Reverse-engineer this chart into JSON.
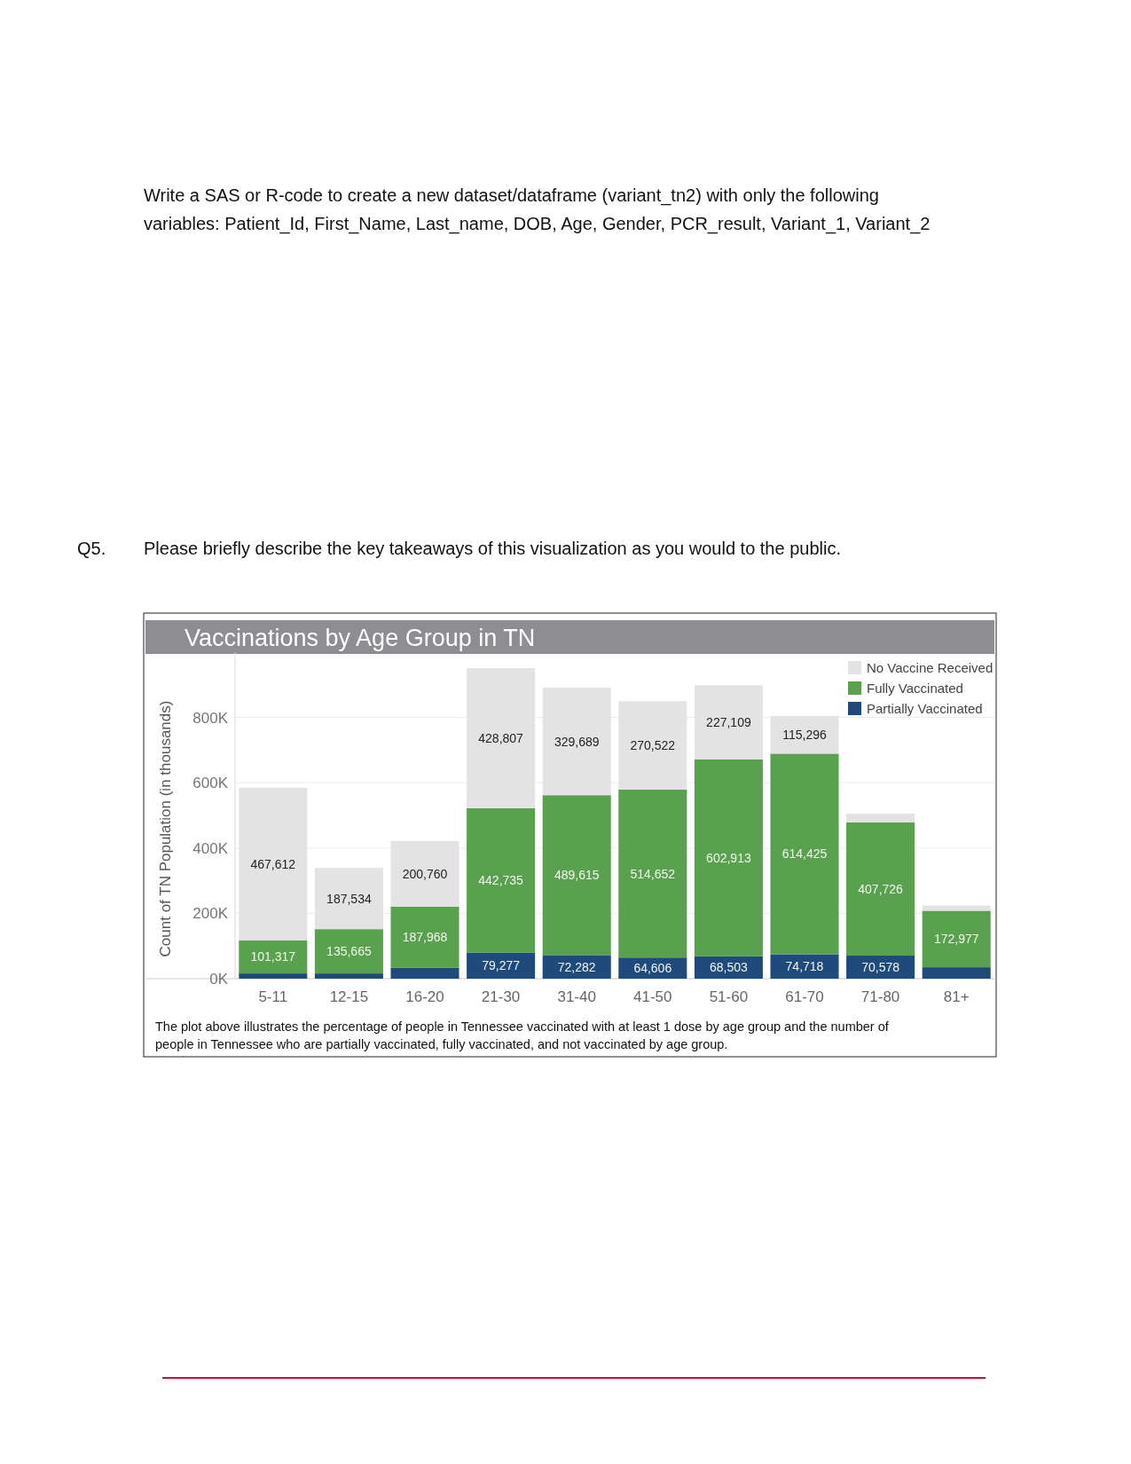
{
  "chart_data": {
    "type": "bar",
    "title": "Vaccinations by Age Group in TN",
    "ylabel": "Count of TN Population (in thousands)",
    "categories": [
      "5-11",
      "12-15",
      "16-20",
      "21-30",
      "31-40",
      "41-50",
      "51-60",
      "61-70",
      "71-80",
      "81+"
    ],
    "stacked": true,
    "series": [
      {
        "name": "Partially Vaccinated",
        "color": "#1f4a7c",
        "values": [
          16000,
          16000,
          33000,
          79277,
          72282,
          64606,
          68503,
          74718,
          70578,
          35000
        ],
        "value_labels": [
          null,
          null,
          null,
          "79,277",
          "72,282",
          "64,606",
          "68,503",
          "74,718",
          "70,578",
          null
        ]
      },
      {
        "name": "Fully Vaccinated",
        "color": "#59a14f",
        "values": [
          101317,
          135665,
          187968,
          442735,
          489615,
          514652,
          602913,
          614425,
          407726,
          172977
        ],
        "value_labels": [
          "101,317",
          "135,665",
          "187,968",
          "442,735",
          "489,615",
          "514,652",
          "602,913",
          "614,425",
          "407,726",
          "172,977"
        ]
      },
      {
        "name": "No Vaccine Received",
        "color": "#e3e3e3",
        "values": [
          467612,
          187534,
          200760,
          428807,
          329689,
          270522,
          227109,
          115296,
          27000,
          16000
        ],
        "value_labels": [
          "467,612",
          "187,534",
          "200,760",
          "428,807",
          "329,689",
          "270,522",
          "227,109",
          "115,296",
          null,
          null
        ]
      }
    ],
    "ylim": [
      0,
      1000000
    ],
    "yticks": [
      {
        "value": 0,
        "label": "0K"
      },
      {
        "value": 200000,
        "label": "200K"
      },
      {
        "value": 400000,
        "label": "400K"
      },
      {
        "value": 600000,
        "label": "600K"
      },
      {
        "value": 800000,
        "label": "800K"
      }
    ],
    "grid": "y",
    "legend": "top right",
    "annotations": [
      "Write a SAS or R-code to create a new dataset/dataframe (variant_tn2) with only the following",
      "variables: Patient_Id, First_Name, Last_name, DOB, Age, Gender, PCR_result, Variant_1, Variant_2",
      "Q5.",
      "Please briefly describe the key takeaways of this visualization as you would to the public.",
      "The plot above illustrates the percentage of people in Tennessee vaccinated with at least 1 dose by age group and the number of",
      "people in Tennessee who are partially vaccinated, fully vaccinated, and not vaccinated by age group."
    ]
  }
}
